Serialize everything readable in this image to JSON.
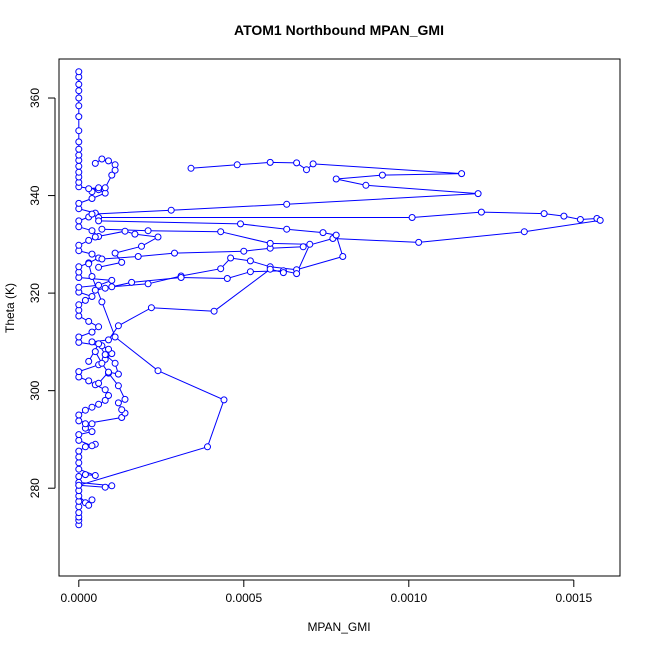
{
  "chart_data": {
    "type": "line",
    "title": "ATOM1 Northbound MPAN_GMI",
    "xlabel": "MPAN_GMI",
    "ylabel": "Theta (K)",
    "xlim": [
      -6e-05,
      0.00164
    ],
    "ylim": [
      262,
      368
    ],
    "xticks": [
      0,
      0.0005,
      0.001,
      0.0015
    ],
    "xtick_labels": [
      "0.0000",
      "0.0005",
      "0.0010",
      "0.0015"
    ],
    "yticks": [
      280,
      300,
      320,
      340,
      360
    ],
    "ytick_labels": [
      "280",
      "300",
      "320",
      "340",
      "360"
    ],
    "grid": false,
    "color": "#0000ff",
    "marker": "open-circle",
    "series": [
      {
        "points": [
          [
            0.0,
            272.5
          ],
          [
            0.0,
            273.4
          ],
          [
            0.0,
            274.1
          ],
          [
            0.0,
            275.0
          ],
          [
            0.0,
            276.2
          ],
          [
            0.0,
            277.3
          ],
          [
            2e-05,
            277.0
          ],
          [
            4e-05,
            277.6
          ],
          [
            3e-05,
            276.5
          ],
          [
            0.0,
            278.4
          ],
          [
            0.0,
            279.5
          ],
          [
            0.0,
            280.6
          ],
          [
            8e-05,
            280.2
          ],
          [
            0.0001,
            280.5
          ],
          [
            0.0,
            281.2
          ],
          [
            0.0,
            282.4
          ],
          [
            2e-05,
            282.8
          ],
          [
            5e-05,
            282.6
          ],
          [
            0.0,
            283.9
          ],
          [
            0.0,
            285.2
          ],
          [
            0.0,
            286.4
          ],
          [
            0.0,
            287.6
          ],
          [
            2e-05,
            288.5
          ],
          [
            5e-05,
            289.0
          ],
          [
            4e-05,
            288.7
          ],
          [
            0.0,
            289.8
          ],
          [
            0.0,
            291.0
          ],
          [
            4e-05,
            291.6
          ],
          [
            2e-05,
            292.3
          ],
          [
            4e-05,
            293.2
          ],
          [
            0.0,
            293.8
          ],
          [
            0.0,
            295.0
          ],
          [
            2e-05,
            296.0
          ],
          [
            4e-05,
            296.6
          ],
          [
            6e-05,
            297.2
          ],
          [
            8e-05,
            298.0
          ],
          [
            9e-05,
            299.0
          ],
          [
            8e-05,
            300.2
          ],
          [
            5e-05,
            301.2
          ],
          [
            3e-05,
            302.0
          ],
          [
            0.0,
            302.8
          ],
          [
            0.0,
            303.9
          ],
          [
            6e-05,
            305.3
          ],
          [
            8e-05,
            306.4
          ],
          [
            0.0001,
            307.6
          ],
          [
            9e-05,
            308.5
          ],
          [
            7e-05,
            309.2
          ],
          [
            0.0,
            309.9
          ],
          [
            0.0,
            311.0
          ],
          [
            4e-05,
            312.0
          ],
          [
            6e-05,
            313.1
          ],
          [
            3e-05,
            314.2
          ],
          [
            0.0,
            315.3
          ],
          [
            0.0,
            316.5
          ],
          [
            0.0,
            317.6
          ],
          [
            2e-05,
            318.5
          ],
          [
            4e-05,
            319.3
          ],
          [
            0.0,
            320.2
          ],
          [
            0.0,
            321.2
          ],
          [
            6e-05,
            321.6
          ],
          [
            0.0001,
            322.6
          ],
          [
            0.0,
            323.2
          ],
          [
            0.0,
            324.3
          ],
          [
            0.0,
            325.4
          ],
          [
            3e-05,
            326.2
          ],
          [
            6e-05,
            327.2
          ],
          [
            4e-05,
            328.0
          ],
          [
            0.0,
            328.7
          ],
          [
            0.0,
            329.8
          ],
          [
            3e-05,
            330.8
          ],
          [
            6e-05,
            331.6
          ],
          [
            4e-05,
            332.8
          ],
          [
            0.0,
            333.6
          ],
          [
            0.0,
            334.8
          ],
          [
            3e-05,
            335.6
          ],
          [
            5e-05,
            336.4
          ],
          [
            0.0,
            337.3
          ],
          [
            0.0,
            338.4
          ],
          [
            4e-05,
            339.4
          ],
          [
            8e-05,
            340.5
          ],
          [
            6e-05,
            341.2
          ],
          [
            0.0,
            341.8
          ],
          [
            0.0,
            342.7
          ],
          [
            0.0,
            343.8
          ],
          [
            0.0,
            344.8
          ],
          [
            0.0,
            346.0
          ],
          [
            0.0,
            347.2
          ],
          [
            0.0,
            348.3
          ],
          [
            0.0,
            349.5
          ],
          [
            0.0,
            351.0
          ],
          [
            0.0,
            353.3
          ],
          [
            0.0,
            356.2
          ],
          [
            0.0,
            358.4
          ],
          [
            0.0,
            360.0
          ],
          [
            0.0,
            361.5
          ],
          [
            0.0,
            362.8
          ],
          [
            0.0,
            364.3
          ],
          [
            0.0,
            365.4
          ]
        ]
      },
      {
        "points": [
          [
            0.0,
            280.6
          ],
          [
            0.00039,
            288.5
          ],
          [
            0.00044,
            298.1
          ],
          [
            0.00024,
            304.1
          ],
          [
            0.00011,
            311.0
          ],
          [
            7e-05,
            318.2
          ],
          [
            4e-05,
            323.4
          ],
          [
            3e-05,
            326.0
          ]
        ]
      },
      {
        "points": [
          [
            2e-05,
            293.2
          ],
          [
            0.00013,
            294.5
          ],
          [
            0.00014,
            295.4
          ],
          [
            0.00013,
            296.1
          ],
          [
            0.00012,
            297.5
          ],
          [
            0.00014,
            298.2
          ],
          [
            0.00012,
            301.0
          ],
          [
            9e-05,
            303.6
          ],
          [
            7e-05,
            305.6
          ],
          [
            5e-05,
            308.0
          ]
        ]
      },
      {
        "points": [
          [
            0.00034,
            345.6
          ],
          [
            0.00048,
            346.3
          ],
          [
            0.00058,
            346.8
          ],
          [
            0.00066,
            346.7
          ],
          [
            0.00069,
            345.3
          ],
          [
            0.00071,
            346.5
          ],
          [
            0.00116,
            344.5
          ],
          [
            0.00092,
            344.2
          ],
          [
            0.00078,
            343.4
          ],
          [
            0.00087,
            342.1
          ],
          [
            0.00121,
            340.4
          ],
          [
            0.00063,
            338.2
          ],
          [
            0.00028,
            337.0
          ],
          [
            4e-05,
            336.2
          ]
        ]
      },
      {
        "points": [
          [
            6e-05,
            335.5
          ],
          [
            0.00101,
            335.5
          ],
          [
            0.00122,
            336.6
          ],
          [
            0.00141,
            336.3
          ],
          [
            0.00147,
            335.8
          ],
          [
            0.00152,
            335.1
          ],
          [
            0.00157,
            335.3
          ],
          [
            0.00158,
            334.9
          ],
          [
            0.00135,
            332.6
          ],
          [
            0.00103,
            330.4
          ],
          [
            0.00077,
            331.2
          ],
          [
            0.00068,
            329.5
          ],
          [
            0.00058,
            329.2
          ],
          [
            0.0005,
            328.6
          ],
          [
            0.00029,
            328.2
          ],
          [
            0.00018,
            327.5
          ],
          [
            7e-05,
            327.0
          ]
        ]
      },
      {
        "points": [
          [
            6e-05,
            334.8
          ],
          [
            0.00049,
            334.2
          ],
          [
            0.00063,
            333.1
          ],
          [
            0.00074,
            332.4
          ],
          [
            0.00078,
            331.9
          ],
          [
            0.0008,
            327.5
          ],
          [
            0.00066,
            324.8
          ],
          [
            0.00058,
            325.4
          ],
          [
            0.00052,
            326.6
          ],
          [
            0.00046,
            327.2
          ],
          [
            0.00043,
            325.0
          ],
          [
            0.00031,
            323.5
          ],
          [
            0.00021,
            321.9
          ],
          [
            0.0001,
            321.3
          ],
          [
            5e-05,
            320.6
          ]
        ]
      },
      {
        "points": [
          [
            7e-05,
            333.1
          ],
          [
            0.00021,
            332.8
          ],
          [
            0.00043,
            332.6
          ],
          [
            0.00058,
            330.2
          ],
          [
            0.0007,
            330.0
          ],
          [
            0.00066,
            324.0
          ],
          [
            0.00062,
            324.6
          ],
          [
            0.00052,
            324.4
          ],
          [
            0.00045,
            323.0
          ],
          [
            0.00031,
            323.2
          ],
          [
            0.00016,
            322.2
          ],
          [
            8e-05,
            321.0
          ]
        ]
      },
      {
        "points": [
          [
            5e-05,
            331.5
          ],
          [
            0.00014,
            332.7
          ],
          [
            0.00017,
            332.1
          ],
          [
            0.00024,
            331.5
          ],
          [
            0.00019,
            329.6
          ],
          [
            0.00011,
            328.2
          ],
          [
            0.00013,
            326.3
          ],
          [
            6e-05,
            325.3
          ]
        ]
      },
      {
        "points": [
          [
            5e-05,
            346.6
          ],
          [
            7e-05,
            347.5
          ],
          [
            9e-05,
            347.1
          ],
          [
            0.00011,
            346.3
          ],
          [
            0.00011,
            345.2
          ],
          [
            0.0001,
            344.2
          ],
          [
            8e-05,
            341.6
          ],
          [
            4e-05,
            340.8
          ],
          [
            3e-05,
            341.4
          ],
          [
            6e-05,
            341.6
          ]
        ]
      },
      {
        "points": [
          [
            4e-05,
            310.0
          ],
          [
            9e-05,
            310.4
          ],
          [
            0.00012,
            313.3
          ],
          [
            0.00022,
            317.0
          ],
          [
            0.00041,
            316.3
          ],
          [
            0.00058,
            324.9
          ],
          [
            0.00062,
            324.2
          ]
        ]
      },
      {
        "points": [
          [
            6e-05,
            301.5
          ],
          [
            9e-05,
            303.8
          ],
          [
            0.00012,
            303.4
          ],
          [
            0.00011,
            305.6
          ],
          [
            8e-05,
            307.4
          ],
          [
            6e-05,
            309.6
          ],
          [
            3e-05,
            306.0
          ]
        ]
      }
    ]
  }
}
